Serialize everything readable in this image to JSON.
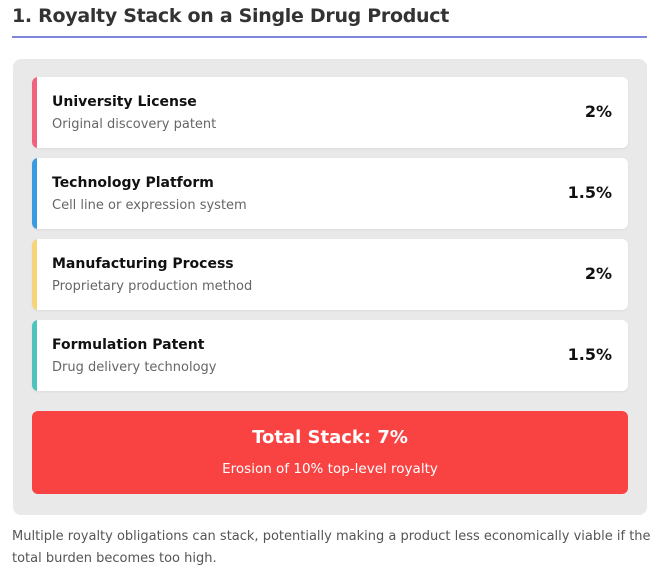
{
  "header": {
    "title": "1. Royalty Stack on a Single Drug Product",
    "rule_color": "#7d86dc"
  },
  "stack": {
    "items": [
      {
        "title": "University License",
        "description": "Original discovery patent",
        "value": "2%",
        "accent": "#f0637c"
      },
      {
        "title": "Technology Platform",
        "description": "Cell line or expression system",
        "value": "1.5%",
        "accent": "#3b9be0"
      },
      {
        "title": "Manufacturing Process",
        "description": "Proprietary production method",
        "value": "2%",
        "accent": "#f5d47a"
      },
      {
        "title": "Formulation Patent",
        "description": "Drug delivery technology",
        "value": "1.5%",
        "accent": "#4fc4bc"
      }
    ],
    "total": {
      "title": "Total Stack: 7%",
      "subtitle": "Erosion of 10% top-level royalty",
      "color": "#f94343"
    }
  },
  "caption": "Multiple royalty obligations can stack, potentially making a product less economically viable if the total burden becomes too high."
}
